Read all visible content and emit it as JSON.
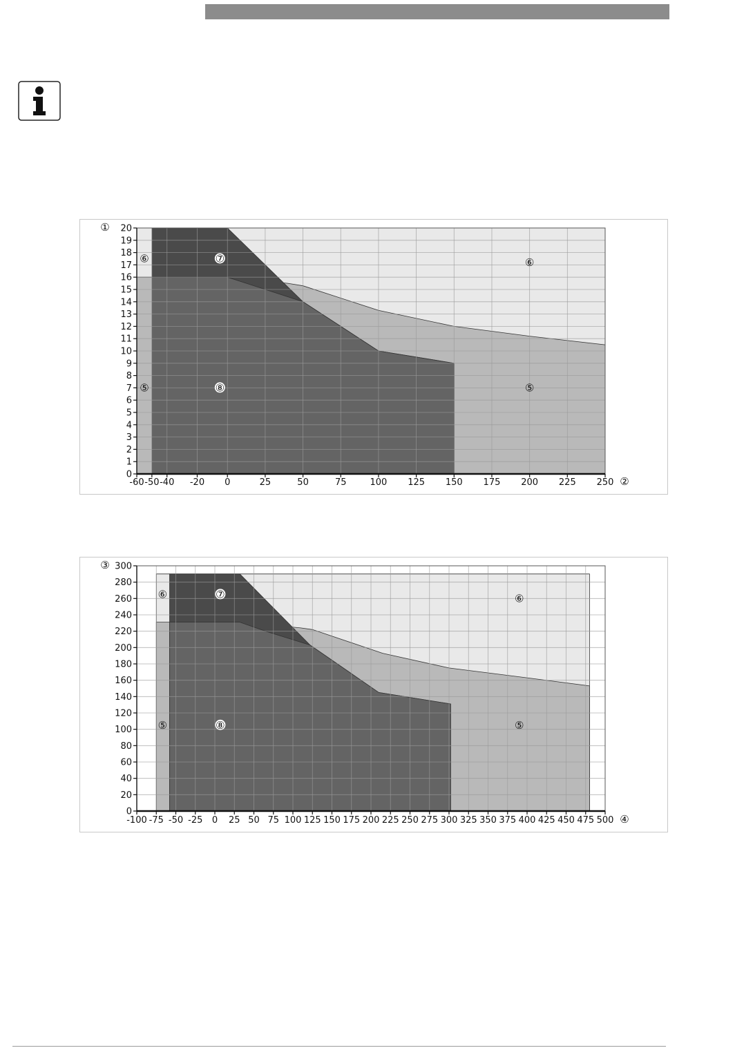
{
  "icons": {
    "info": "info-icon"
  },
  "colors": {
    "header_bar": "#8c8c8c",
    "zone5": "#b9b9b9",
    "zone6": "#e9e9e9",
    "zone7": "#4a4a4a",
    "zone8": "#646464",
    "grid": "#9a9a9a"
  },
  "chart_data": [
    {
      "type": "area",
      "x_axis_marker": "②",
      "y_axis_marker": "①",
      "xlim": [
        -60,
        250
      ],
      "ylim": [
        0,
        20
      ],
      "x_ticks": [
        -60,
        -50,
        -40,
        -20,
        0,
        25,
        50,
        75,
        100,
        125,
        150,
        175,
        200,
        225,
        250
      ],
      "y_ticks": [
        0,
        1,
        2,
        3,
        4,
        5,
        6,
        7,
        8,
        9,
        10,
        11,
        12,
        13,
        14,
        15,
        16,
        17,
        18,
        19,
        20
      ],
      "grid": true,
      "regions": [
        {
          "label": "⑥",
          "label_at": [
            [
              -55,
              17.5
            ],
            [
              200,
              17.2
            ]
          ],
          "points": [
            [
              -60,
              0
            ],
            [
              -60,
              20
            ],
            [
              250,
              20
            ],
            [
              250,
              0
            ]
          ]
        },
        {
          "label": "⑤",
          "label_at": [
            [
              -55,
              7
            ],
            [
              200,
              7
            ]
          ],
          "points": [
            [
              -60,
              0
            ],
            [
              -60,
              16
            ],
            [
              -50,
              16
            ],
            [
              0,
              16
            ],
            [
              40,
              15.5
            ],
            [
              50,
              15.3
            ],
            [
              100,
              13.3
            ],
            [
              150,
              12
            ],
            [
              200,
              11.2
            ],
            [
              250,
              10.5
            ],
            [
              250,
              0
            ]
          ]
        },
        {
          "label": "⑦",
          "label_at": [
            [
              -5,
              17.5
            ]
          ],
          "points": [
            [
              -50,
              0
            ],
            [
              -50,
              20
            ],
            [
              0,
              20
            ],
            [
              50,
              14
            ],
            [
              100,
              10
            ],
            [
              150,
              9
            ],
            [
              150,
              0
            ]
          ]
        },
        {
          "label": "⑧",
          "label_at": [
            [
              -5,
              7
            ]
          ],
          "points": [
            [
              -50,
              0
            ],
            [
              -50,
              16
            ],
            [
              0,
              16
            ],
            [
              25,
              15
            ],
            [
              50,
              14
            ],
            [
              100,
              10
            ],
            [
              150,
              9
            ],
            [
              150,
              0
            ]
          ]
        }
      ]
    },
    {
      "type": "area",
      "x_axis_marker": "④",
      "y_axis_marker": "③",
      "xlim": [
        -100,
        500
      ],
      "ylim": [
        0,
        300
      ],
      "x_ticks": [
        -100,
        -75,
        -50,
        -25,
        0,
        25,
        50,
        75,
        100,
        125,
        150,
        175,
        200,
        225,
        250,
        275,
        300,
        325,
        350,
        375,
        400,
        425,
        450,
        475,
        500
      ],
      "y_ticks": [
        0,
        20,
        40,
        60,
        80,
        100,
        120,
        140,
        160,
        180,
        200,
        220,
        240,
        260,
        280,
        300
      ],
      "grid": true,
      "regions": [
        {
          "label": "⑥",
          "label_at": [
            [
              -67,
              265
            ],
            [
              390,
              260
            ]
          ],
          "points": [
            [
              -75,
              0
            ],
            [
              -75,
              290
            ],
            [
              480,
              290
            ],
            [
              480,
              0
            ]
          ]
        },
        {
          "label": "⑤",
          "label_at": [
            [
              -67,
              105
            ],
            [
              390,
              105
            ]
          ],
          "points": [
            [
              -75,
              0
            ],
            [
              -75,
              231
            ],
            [
              32,
              231
            ],
            [
              110,
              224
            ],
            [
              125,
              222
            ],
            [
              215,
              193
            ],
            [
              300,
              175
            ],
            [
              400,
              163
            ],
            [
              480,
              153
            ],
            [
              480,
              0
            ]
          ]
        },
        {
          "label": "⑦",
          "label_at": [
            [
              7,
              265
            ]
          ],
          "points": [
            [
              -58,
              0
            ],
            [
              -58,
              290
            ],
            [
              32,
              290
            ],
            [
              122,
              203
            ],
            [
              210,
              145
            ],
            [
              302,
              131
            ],
            [
              302,
              0
            ]
          ]
        },
        {
          "label": "⑧",
          "label_at": [
            [
              7,
              105
            ]
          ],
          "points": [
            [
              -58,
              0
            ],
            [
              -58,
              231
            ],
            [
              32,
              231
            ],
            [
              65,
              220
            ],
            [
              122,
              203
            ],
            [
              210,
              145
            ],
            [
              302,
              131
            ],
            [
              302,
              0
            ]
          ]
        }
      ]
    }
  ]
}
